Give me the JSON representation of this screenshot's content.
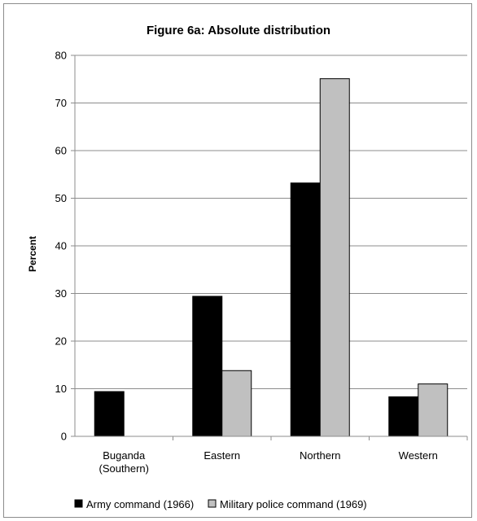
{
  "chart_data": {
    "type": "bar",
    "title": "Figure 6a: Absolute distribution",
    "xlabel": "",
    "ylabel": "Percent",
    "ylim": [
      0,
      80
    ],
    "yticks": [
      "0",
      "10",
      "20",
      "30",
      "40",
      "50",
      "60",
      "70",
      "80"
    ],
    "categories": [
      [
        "Buganda",
        "(Southern)"
      ],
      [
        "Eastern"
      ],
      [
        "Northern"
      ],
      [
        "Western"
      ]
    ],
    "series": [
      {
        "name": "Army command (1966)",
        "values": [
          9.4,
          29.4,
          53.2,
          8.3
        ],
        "color": "#000000"
      },
      {
        "name": "Military police command (1969)",
        "values": [
          0,
          13.8,
          75.1,
          11.0
        ],
        "color": "#c0c0c0"
      }
    ],
    "grid": true,
    "legend_position": "bottom"
  }
}
